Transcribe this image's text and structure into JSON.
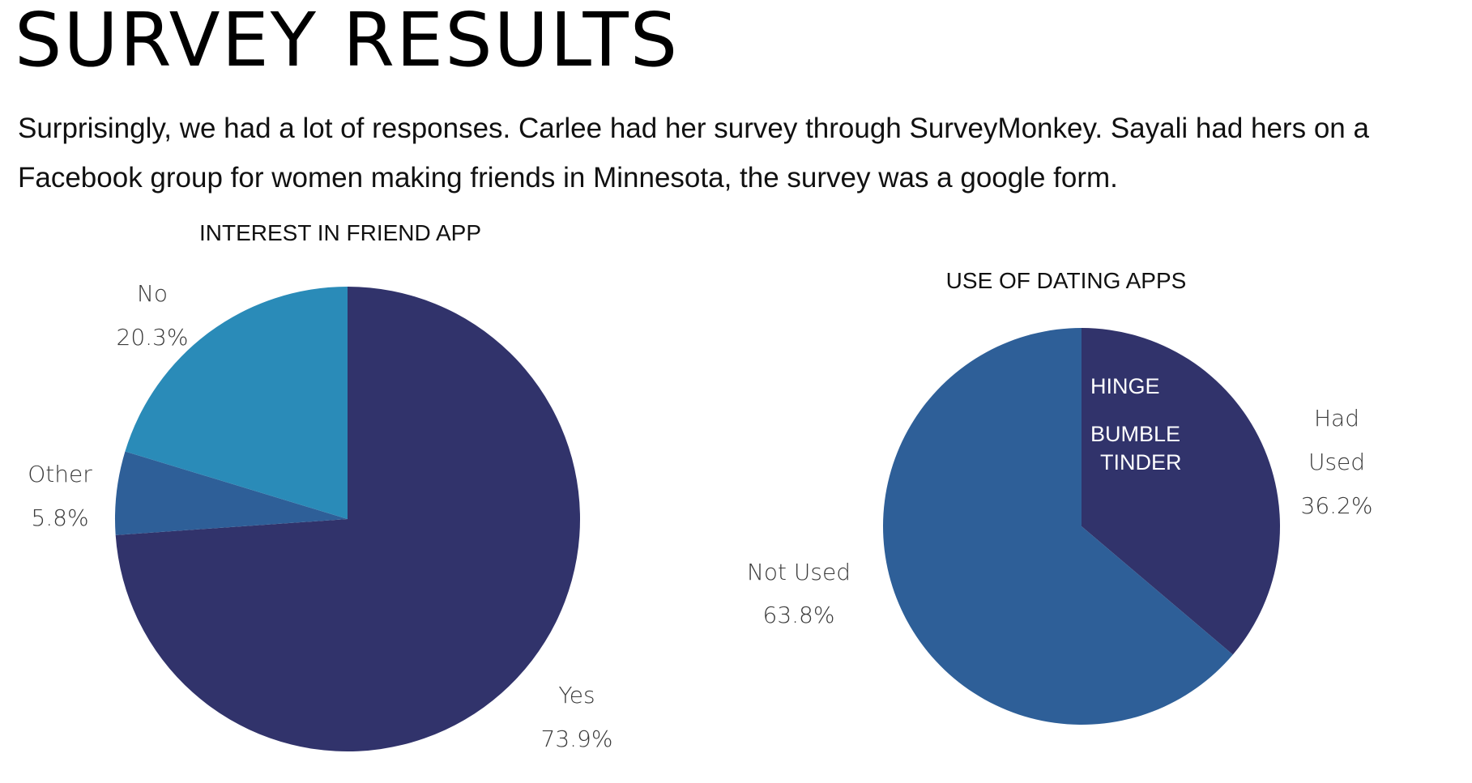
{
  "page": {
    "title": "SURVEY RESULTS",
    "intro": "Surprisingly, we had a lot of responses. Carlee had her survey through SurveyMonkey. Sayali had hers on a Facebook group for women making friends in Minnesota, the survey was a google form."
  },
  "chart_data": [
    {
      "type": "pie",
      "title": "INTEREST IN FRIEND APP",
      "slices": [
        {
          "label": "Yes",
          "value": 73.9,
          "display": "73.9%",
          "color": "#31336b"
        },
        {
          "label": "Other",
          "value": 5.8,
          "display": "5.8%",
          "color": "#2e5f98"
        },
        {
          "label": "No",
          "value": 20.3,
          "display": "20.3%",
          "color": "#2a8bb8"
        }
      ]
    },
    {
      "type": "pie",
      "title": "USE OF DATING APPS",
      "slices": [
        {
          "label": "Had Used",
          "label_lines": [
            "Had",
            "Used"
          ],
          "value": 36.2,
          "display": "36.2%",
          "color": "#31336b"
        },
        {
          "label": "Not Used",
          "label_lines": [
            "Not Used"
          ],
          "value": 63.8,
          "display": "63.8%",
          "color": "#2e5f98"
        }
      ],
      "annotations": [
        "HINGE",
        "BUMBLE",
        "TINDER"
      ]
    }
  ]
}
